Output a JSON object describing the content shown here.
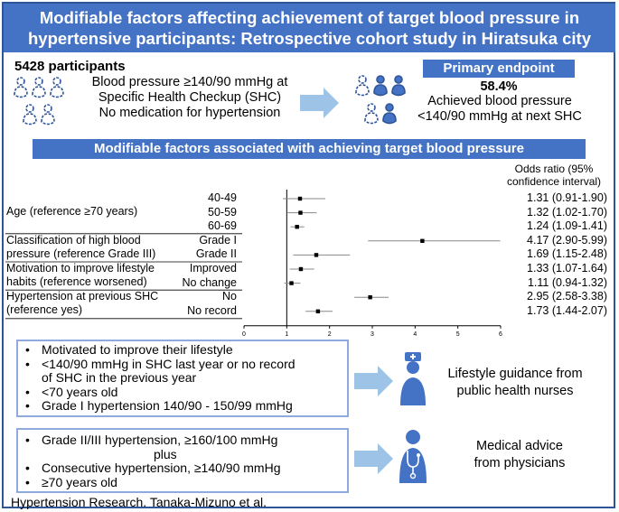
{
  "title": {
    "line1": "Modifiable factors affecting achievement of target blood pressure in",
    "line2": "hypertensive participants: Retrospective cohort study in Hiratsuka city"
  },
  "participants": {
    "count": "5428 participants",
    "criteria": [
      "Blood pressure ≥140/90 mmHg at",
      "Specific Health Checkup (SHC)",
      "No medication for hypertension"
    ]
  },
  "primary_endpoint": {
    "label": "Primary endpoint",
    "value": "58.4%",
    "line1": "Achieved blood pressure",
    "line2": "<140/90 mmHg at next SHC"
  },
  "factors_banner": "Modifiable factors associated with achieving target blood pressure",
  "chart_data": {
    "type": "forest",
    "or_header": [
      "Odds ratio (95%",
      "confidence interval)"
    ],
    "x_ticks": [
      "0",
      "1",
      "2",
      "3",
      "4",
      "5",
      "6"
    ],
    "xlim": [
      0,
      6
    ],
    "reference_line": 1,
    "groups": [
      {
        "label": [
          "Age (reference ≥70 years)"
        ]
      },
      {
        "label": [
          "Classification of high blood",
          "pressure (reference Grade III)"
        ]
      },
      {
        "label": [
          "Motivation to improve lifestyle",
          "habits (reference worsened)"
        ]
      },
      {
        "label": [
          "Hypertension at previous SHC",
          "(reference yes)"
        ]
      }
    ],
    "rows": [
      {
        "group": 0,
        "sub": "40-49",
        "or": 1.31,
        "lo": 0.91,
        "hi": 1.9,
        "text": "1.31 (0.91-1.90)"
      },
      {
        "group": 0,
        "sub": "50-59",
        "or": 1.32,
        "lo": 1.02,
        "hi": 1.7,
        "text": "1.32 (1.02-1.70)"
      },
      {
        "group": 0,
        "sub": "60-69",
        "or": 1.24,
        "lo": 1.09,
        "hi": 1.41,
        "text": "1.24 (1.09-1.41)"
      },
      {
        "group": 1,
        "sub": "Grade I",
        "or": 4.17,
        "lo": 2.9,
        "hi": 5.99,
        "text": "4.17 (2.90-5.99)"
      },
      {
        "group": 1,
        "sub": "Grade II",
        "or": 1.69,
        "lo": 1.15,
        "hi": 2.48,
        "text": "1.69 (1.15-2.48)"
      },
      {
        "group": 2,
        "sub": "Improved",
        "or": 1.33,
        "lo": 1.07,
        "hi": 1.64,
        "text": "1.33 (1.07-1.64)"
      },
      {
        "group": 2,
        "sub": "No change",
        "or": 1.11,
        "lo": 0.94,
        "hi": 1.32,
        "text": "1.11 (0.94-1.32)"
      },
      {
        "group": 3,
        "sub": "No",
        "or": 2.95,
        "lo": 2.58,
        "hi": 3.38,
        "text": "2.95 (2.58-3.38)"
      },
      {
        "group": 3,
        "sub": "No record",
        "or": 1.73,
        "lo": 1.44,
        "hi": 2.07,
        "text": "1.73 (1.44-2.07)"
      }
    ]
  },
  "lifestyle": {
    "items": [
      [
        "Motivated to improve their lifestyle"
      ],
      [
        "<140/90 mmHg in SHC last year or no record",
        "of SHC in the previous year"
      ],
      [
        "<70 years old"
      ],
      [
        "Grade I hypertension  140/90 - 150/99 mmHg"
      ]
    ],
    "outcome": [
      "Lifestyle guidance from",
      "public health nurses"
    ]
  },
  "medical": {
    "item1": "Grade II/III hypertension, ≥160/100 mmHg",
    "plus": "plus",
    "item2": "Consecutive hypertension, ≥140/90 mmHg",
    "item3": "≥70 years old",
    "outcome": [
      "Medical advice",
      "from physicians"
    ]
  },
  "citation": "Hypertension Research. Tanaka-Mizuno et al.",
  "colors": {
    "accent": "#4472c4",
    "light_accent": "#8faadc",
    "arrow": "#9dc3e6",
    "person_outline": "#2f5597",
    "person_fill": "#4472c4"
  }
}
